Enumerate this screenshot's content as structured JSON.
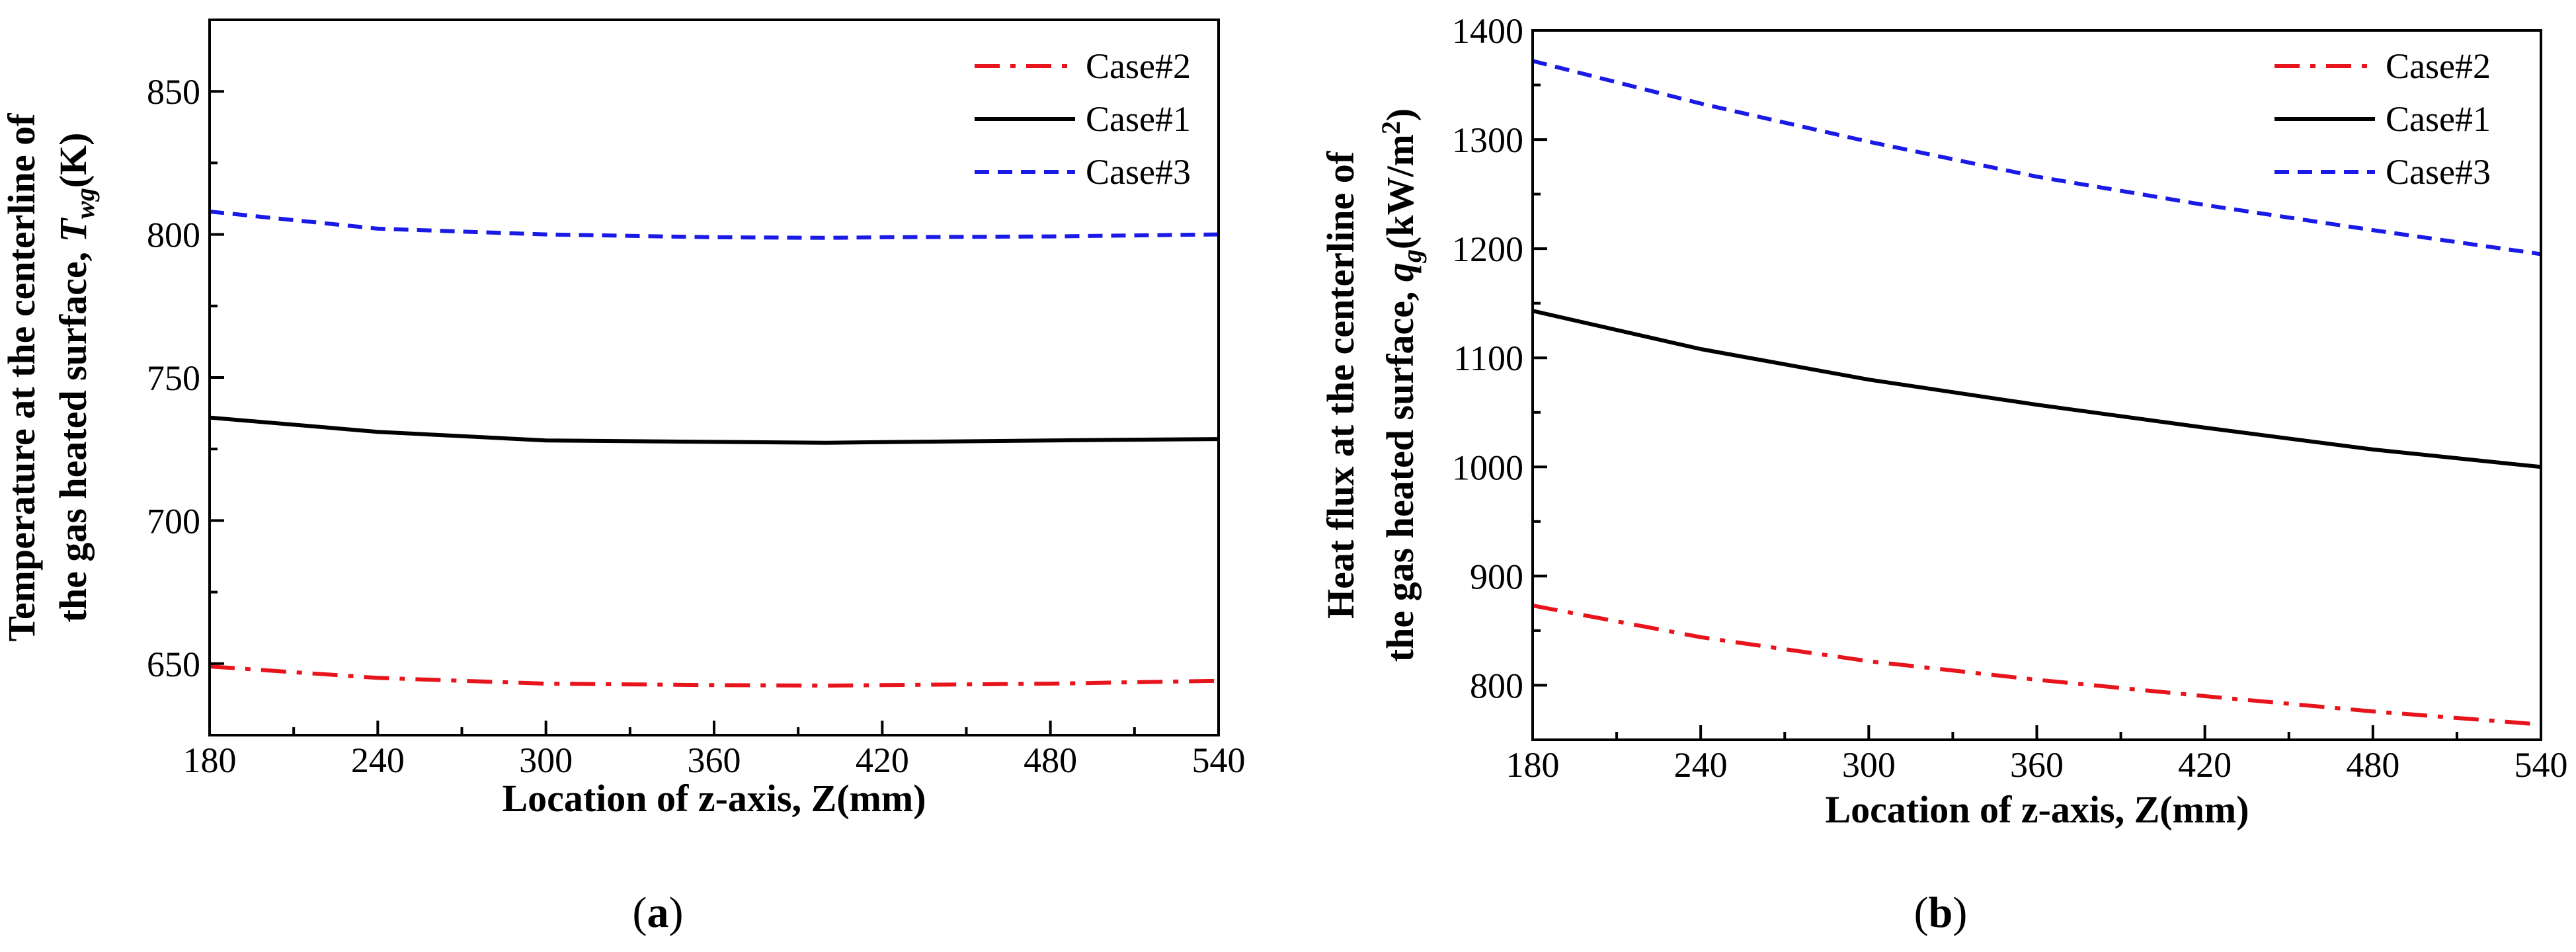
{
  "chart_data": [
    {
      "type": "line",
      "panel_label": {
        "open": "(",
        "letter": "a",
        "close": ")"
      },
      "title": "",
      "xlabel": "Location of z-axis, Z(mm)",
      "ylabel_line1": "Temperature at the centerline of",
      "ylabel_line2": {
        "prefix": "the gas heated surface, ",
        "symbol": "T",
        "subscript": "wg",
        "suffix": "(K)"
      },
      "xlim": [
        180,
        540
      ],
      "ylim": [
        625,
        875
      ],
      "xticks": [
        180,
        240,
        300,
        360,
        420,
        480,
        540
      ],
      "yticks": [
        650,
        700,
        750,
        800,
        850
      ],
      "legend_position": "top-right",
      "x": [
        180,
        240,
        300,
        360,
        400,
        420,
        480,
        540
      ],
      "series": [
        {
          "name": "Case#2",
          "style": "dashdot",
          "color": "#e8141c",
          "values": [
            649,
            645,
            643,
            642.5,
            642.3,
            642.5,
            643,
            644
          ]
        },
        {
          "name": "Case#1",
          "style": "solid",
          "color": "#000000",
          "values": [
            736,
            731,
            728,
            727.5,
            727.2,
            727.4,
            728,
            728.5
          ]
        },
        {
          "name": "Case#3",
          "style": "dashed",
          "color": "#1a1ae6",
          "values": [
            808,
            802,
            800,
            799,
            798.8,
            799,
            799.3,
            800
          ]
        }
      ]
    },
    {
      "type": "line",
      "panel_label": {
        "open": "(",
        "letter": "b",
        "close": ")"
      },
      "title": "",
      "xlabel": "Location of z-axis, Z(mm)",
      "ylabel_line1": "Heat flux at the centerline of",
      "ylabel_line2": {
        "prefix": "the gas heated surface, ",
        "symbol": "q",
        "subscript": "g",
        "suffix": "(kW/m",
        "superscript": "2",
        "end": ")"
      },
      "xlim": [
        180,
        540
      ],
      "ylim": [
        750,
        1400
      ],
      "xticks": [
        180,
        240,
        300,
        360,
        420,
        480,
        540
      ],
      "yticks": [
        800,
        900,
        1000,
        1100,
        1200,
        1300,
        1400
      ],
      "legend_position": "top-right",
      "x": [
        180,
        240,
        300,
        360,
        420,
        480,
        540
      ],
      "series": [
        {
          "name": "Case#2",
          "style": "dashdot",
          "color": "#e8141c",
          "values": [
            873,
            844,
            822,
            805,
            790,
            776,
            764
          ]
        },
        {
          "name": "Case#1",
          "style": "solid",
          "color": "#000000",
          "values": [
            1143,
            1108,
            1080,
            1057,
            1036,
            1016,
            1000
          ]
        },
        {
          "name": "Case#3",
          "style": "dashed",
          "color": "#1a1ae6",
          "values": [
            1372,
            1333,
            1298,
            1266,
            1240,
            1217,
            1195
          ]
        }
      ]
    }
  ]
}
